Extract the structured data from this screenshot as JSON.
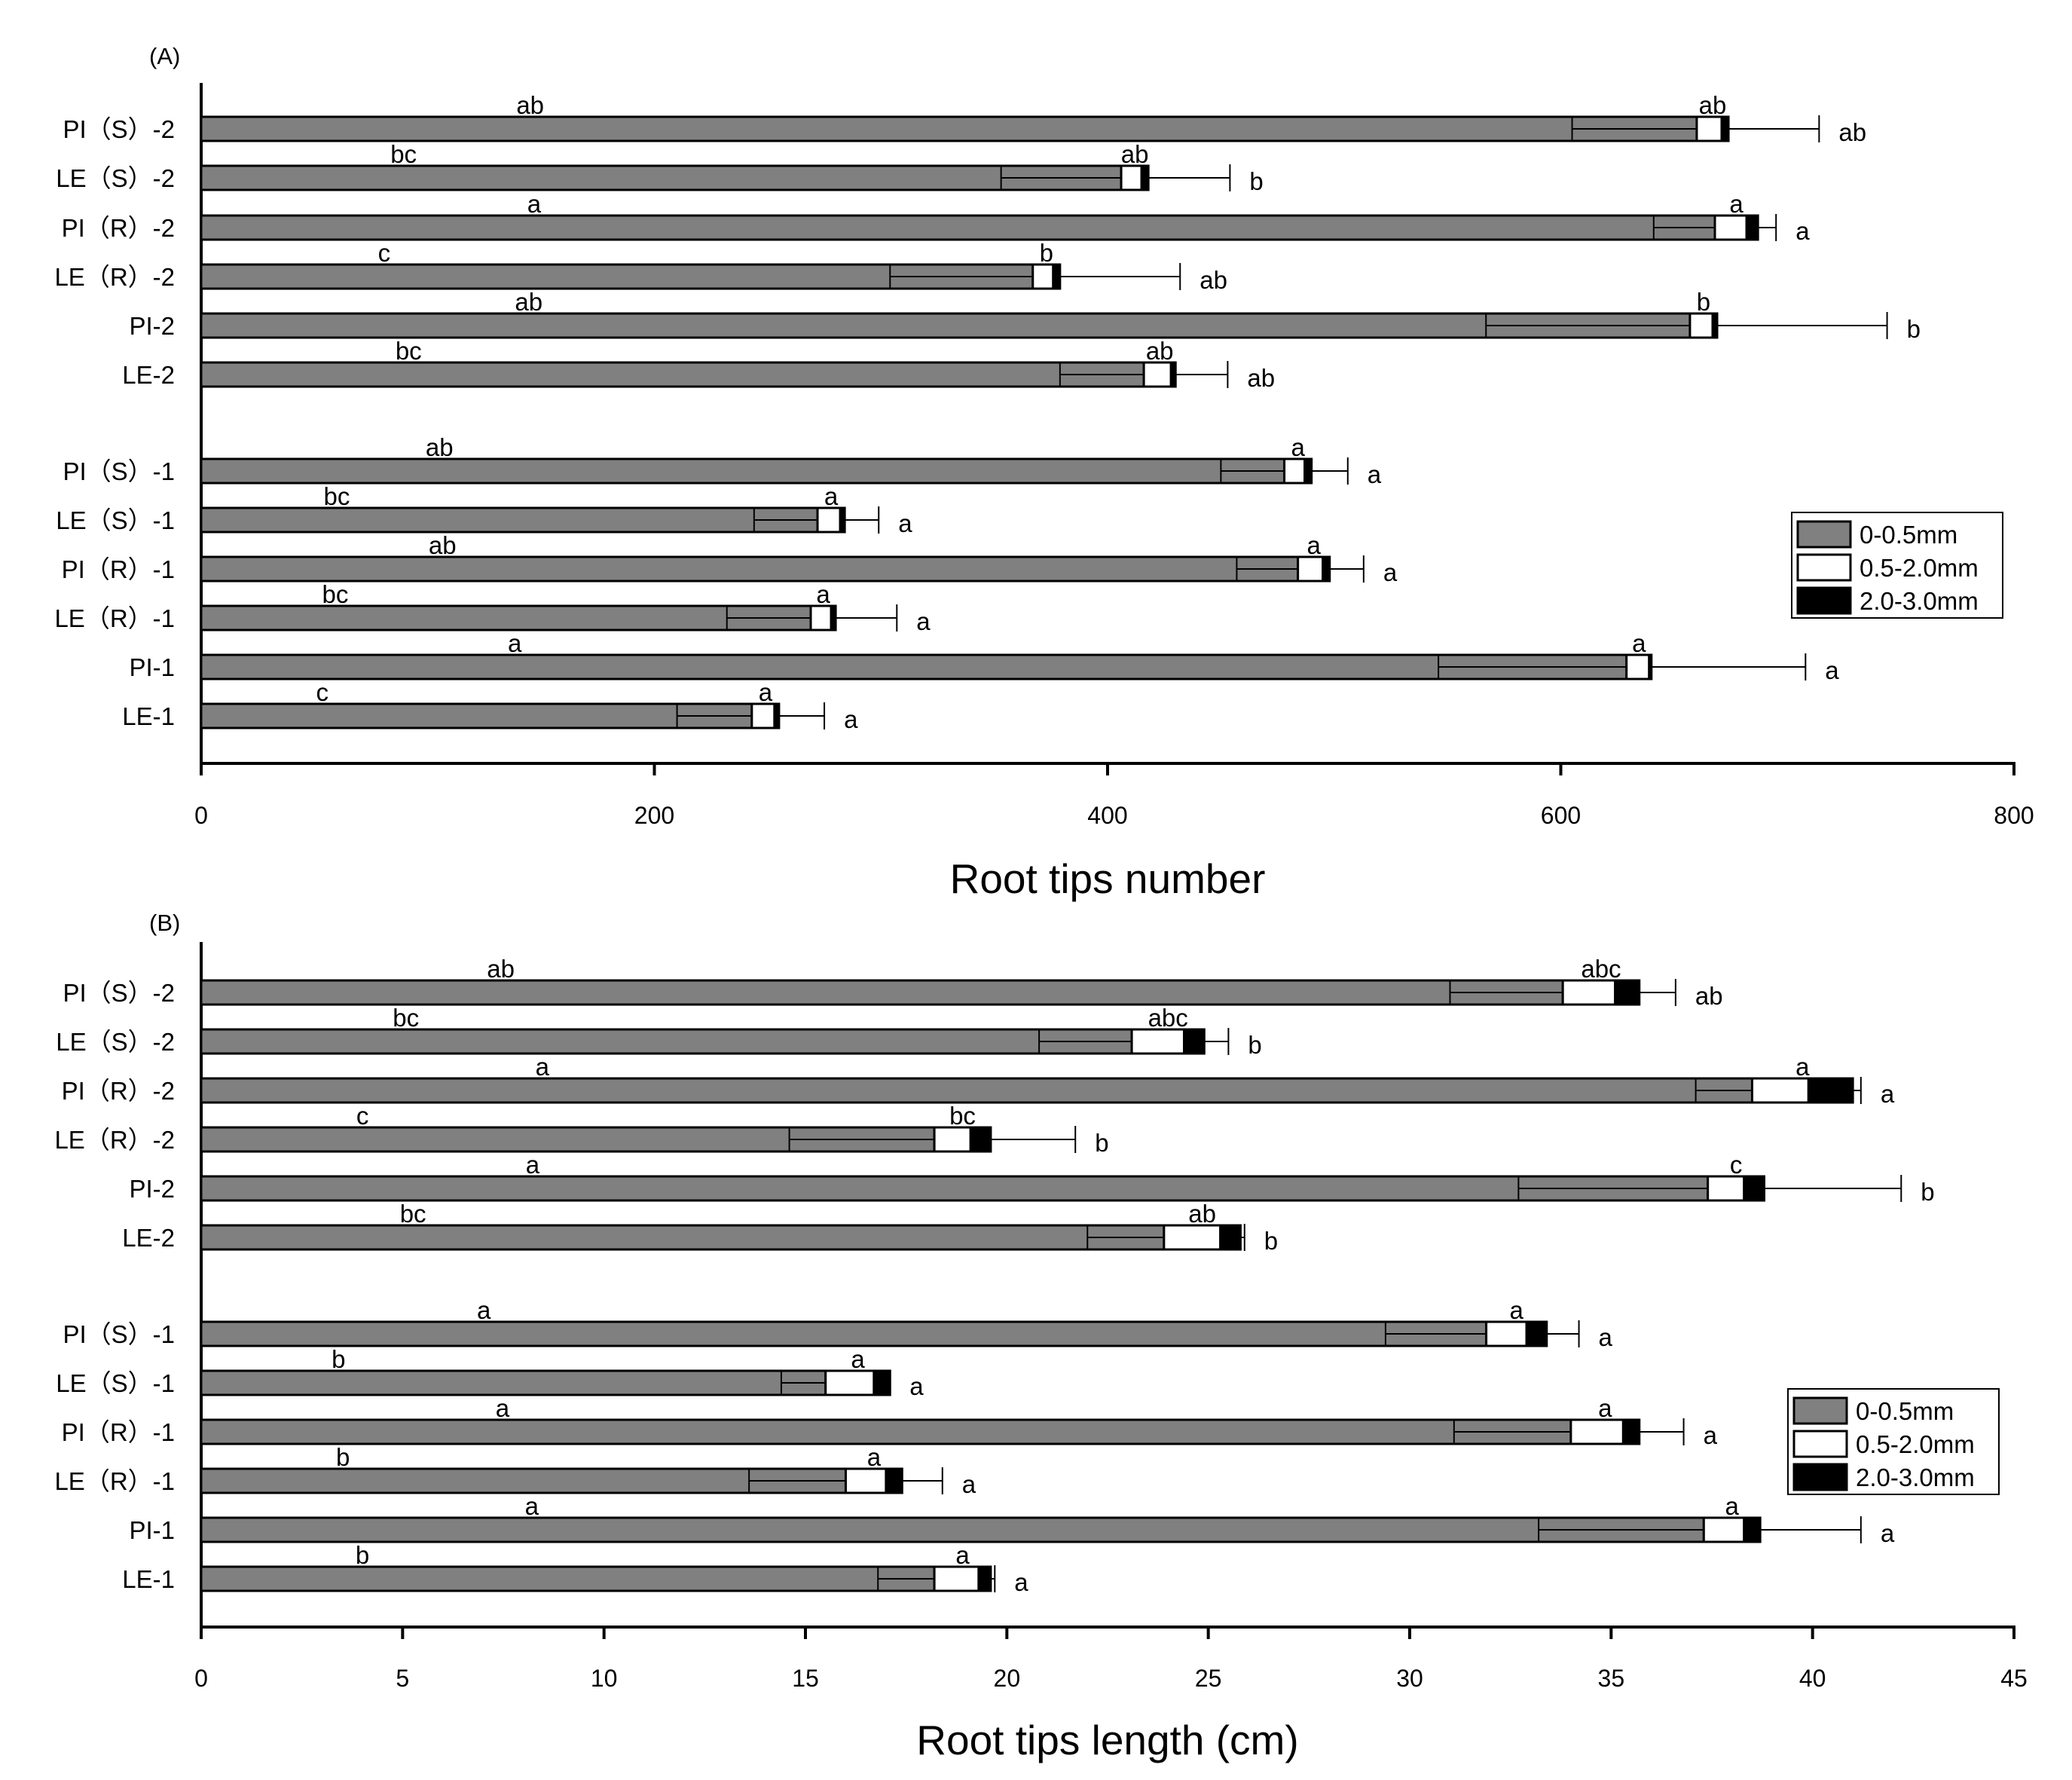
{
  "colors": {
    "seg1": "#808080",
    "seg2": "#ffffff",
    "seg3": "#000000",
    "axis": "#000000"
  },
  "legend": [
    "0-0.5mm",
    "0.5-2.0mm",
    "2.0-3.0mm"
  ],
  "chart_data": [
    {
      "type": "bar",
      "orientation": "horizontal",
      "stacked": true,
      "panel_label": "(A)",
      "xlabel": "Root tips number",
      "ylabel": "",
      "xlim": [
        0,
        800
      ],
      "xticks": [
        0,
        200,
        400,
        600,
        800
      ],
      "legend": [
        "0-0.5mm",
        "0.5-2.0mm",
        "2.0-3.0mm"
      ],
      "categories": [
        "PI（S）-2",
        "LE（S）-2",
        "PI（R）-2",
        "LE（R）-2",
        "PI-2",
        "LE-2",
        "PI（S）-1",
        "LE（S）-1",
        "PI（R）-1",
        "LE（R）-1",
        "PI-1",
        "LE-1"
      ],
      "series": [
        {
          "name": "0-0.5mm",
          "values": [
            660,
            406,
            668,
            367,
            657,
            416,
            478,
            272,
            484,
            269,
            629,
            243
          ],
          "err": [
            55,
            53,
            27,
            63,
            90,
            37,
            28,
            28,
            27,
            37,
            83,
            33
          ],
          "letters": [
            "ab",
            "bc",
            "a",
            "c",
            "ab",
            "bc",
            "ab",
            "bc",
            "ab",
            "bc",
            "a",
            "c"
          ]
        },
        {
          "name": "0.5-2.0mm",
          "values": [
            11,
            9,
            14,
            9,
            10,
            12,
            9,
            10,
            11,
            9,
            10,
            10
          ],
          "err": [
            0,
            0,
            0,
            0,
            0,
            0,
            0,
            0,
            0,
            0,
            0,
            0
          ],
          "letters": [
            "ab",
            "ab",
            "a",
            "b",
            "b",
            "ab",
            "a",
            "a",
            "a",
            "a",
            "a",
            "a"
          ]
        },
        {
          "name": "2.0-3.0mm",
          "values": [
            3,
            3,
            5,
            3,
            2,
            2,
            3,
            2,
            3,
            2,
            1,
            2
          ],
          "err": [
            40,
            36,
            8,
            53,
            75,
            23,
            16,
            15,
            15,
            27,
            68,
            20
          ],
          "letters": [
            "ab",
            "b",
            "a",
            "ab",
            "b",
            "ab",
            "a",
            "a",
            "a",
            "a",
            "a",
            "a"
          ]
        }
      ]
    },
    {
      "type": "bar",
      "orientation": "horizontal",
      "stacked": true,
      "panel_label": "(B)",
      "xlabel": "Root tips length (cm)",
      "ylabel": "",
      "xlim": [
        0,
        45
      ],
      "xticks": [
        0,
        5,
        10,
        15,
        20,
        25,
        30,
        35,
        40,
        45
      ],
      "legend": [
        "0-0.5mm",
        "0.5-2.0mm",
        "2.0-3.0mm"
      ],
      "categories": [
        "PI（S）-2",
        "LE（S）-2",
        "PI（R）-2",
        "LE（R）-2",
        "PI-2",
        "LE-2",
        "PI（S）-1",
        "LE（S）-1",
        "PI（R）-1",
        "LE（R）-1",
        "PI-1",
        "LE-1"
      ],
      "series": [
        {
          "name": "0-0.5mm",
          "values": [
            33.8,
            23.1,
            38.5,
            18.2,
            37.4,
            23.9,
            31.9,
            15.5,
            34.0,
            16.0,
            37.3,
            18.2
          ],
          "err": [
            2.8,
            2.3,
            1.4,
            3.6,
            4.7,
            1.9,
            2.5,
            1.1,
            2.9,
            2.4,
            4.1,
            1.4
          ],
          "letters": [
            "ab",
            "bc",
            "a",
            "c",
            "a",
            "bc",
            "a",
            "b",
            "a",
            "b",
            "a",
            "b"
          ]
        },
        {
          "name": "0.5-2.0mm",
          "values": [
            1.3,
            1.3,
            1.4,
            0.9,
            0.9,
            1.4,
            1.0,
            1.2,
            1.3,
            1.0,
            1.0,
            1.1
          ],
          "err": [
            0,
            0,
            0,
            0,
            0,
            0,
            0,
            0,
            0,
            0,
            0,
            0
          ],
          "letters": [
            "abc",
            "abc",
            "a",
            "bc",
            "c",
            "ab",
            "a",
            "a",
            "a",
            "a",
            "a",
            "a"
          ]
        },
        {
          "name": "2.0-3.0mm",
          "values": [
            0.6,
            0.5,
            1.1,
            0.5,
            0.5,
            0.5,
            0.5,
            0.4,
            0.4,
            0.4,
            0.4,
            0.3
          ],
          "err": [
            0.9,
            0.6,
            0.2,
            2.1,
            3.4,
            0.1,
            0.8,
            0,
            1.1,
            1.0,
            2.5,
            0.1
          ],
          "letters": [
            "ab",
            "b",
            "a",
            "b",
            "b",
            "b",
            "a",
            "a",
            "a",
            "a",
            "a",
            "a"
          ]
        }
      ]
    }
  ]
}
